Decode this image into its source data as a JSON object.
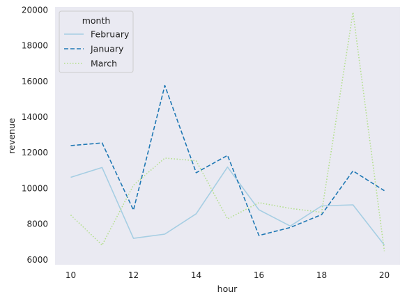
{
  "chart_data": {
    "type": "line",
    "xlabel": "hour",
    "ylabel": "revenue",
    "xlim": [
      9.5,
      20.5
    ],
    "ylim": [
      5700,
      20150
    ],
    "x_ticks": [
      10,
      12,
      14,
      16,
      18,
      20
    ],
    "y_ticks": [
      6000,
      8000,
      10000,
      12000,
      14000,
      16000,
      18000,
      20000
    ],
    "grid": false,
    "background": "#eaeaf2",
    "legend": {
      "title": "month",
      "placement": "top-left"
    },
    "x": [
      10,
      11,
      12,
      13,
      14,
      15,
      16,
      17,
      18,
      19,
      20
    ],
    "series": [
      {
        "name": "February",
        "color": "#a6cee3",
        "dash": "solid",
        "values": [
          10600,
          11150,
          7180,
          7420,
          8560,
          11180,
          8780,
          7870,
          9000,
          9060,
          6800
        ]
      },
      {
        "name": "January",
        "color": "#1f78b4",
        "dash": "dashed",
        "values": [
          12380,
          12530,
          8760,
          15750,
          10860,
          11830,
          7340,
          7790,
          8510,
          10960,
          9850
        ]
      },
      {
        "name": "March",
        "color": "#b2df8a",
        "dash": "dotted",
        "values": [
          8490,
          6800,
          10160,
          11680,
          11530,
          8270,
          9180,
          8860,
          8640,
          19850,
          6470
        ]
      }
    ]
  }
}
